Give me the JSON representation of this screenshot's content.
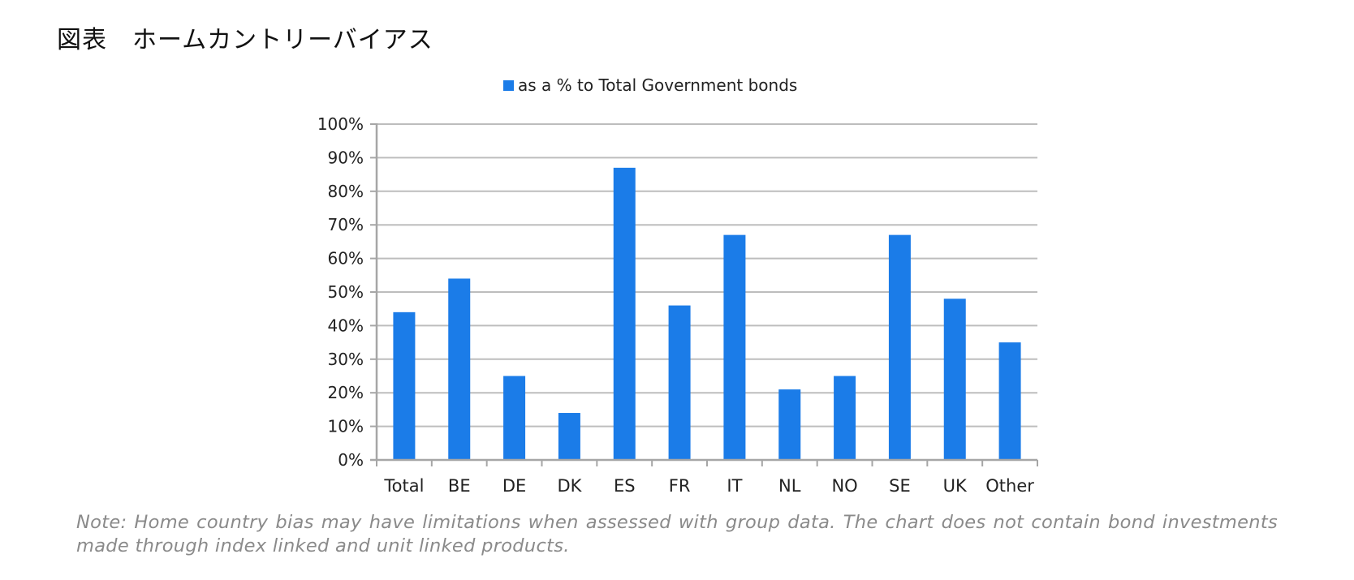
{
  "figure": {
    "title": "図表　ホームカントリーバイアス"
  },
  "chart_data": {
    "type": "bar",
    "title": "",
    "xlabel": "",
    "ylabel": "",
    "legend": {
      "position": "top",
      "entries": [
        "as a % to Total Government bonds"
      ]
    },
    "categories": [
      "Total",
      "BE",
      "DE",
      "DK",
      "ES",
      "FR",
      "IT",
      "NL",
      "NO",
      "SE",
      "UK",
      "Other"
    ],
    "series": [
      {
        "name": "as a % to Total Government bonds",
        "color": "#1b7ce8",
        "values": [
          44,
          54,
          25,
          14,
          87,
          46,
          67,
          21,
          25,
          67,
          48,
          35
        ]
      }
    ],
    "ylim": [
      0,
      100
    ],
    "yticks": [
      0,
      10,
      20,
      30,
      40,
      50,
      60,
      70,
      80,
      90,
      100
    ],
    "ytick_labels": [
      "0%",
      "10%",
      "20%",
      "30%",
      "40%",
      "50%",
      "60%",
      "70%",
      "80%",
      "90%",
      "100%"
    ],
    "grid": true,
    "colors": {
      "grid": "#bdbdbd",
      "axis": "#a6a6a6"
    }
  },
  "note": "Note: Home country bias may have limitations when assessed with group data. The chart does not contain bond investments made through index linked and unit linked products."
}
